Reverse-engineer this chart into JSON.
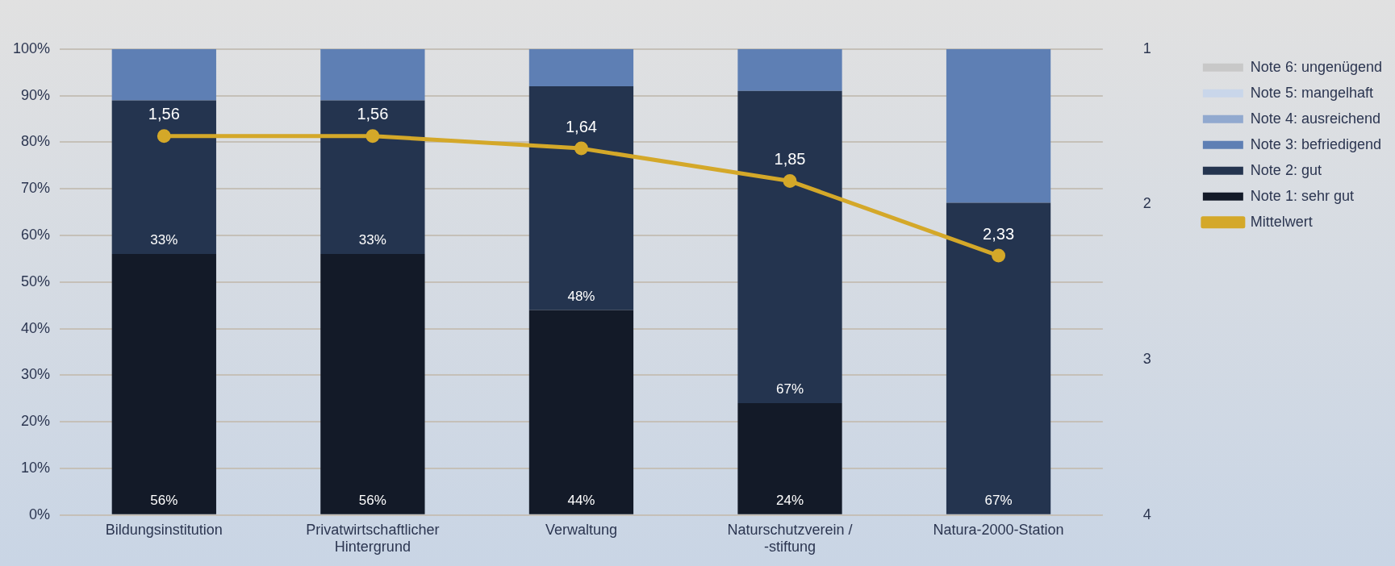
{
  "chart_data": {
    "type": "bar",
    "stacked": true,
    "categories": [
      "Bildungsinstitution",
      "Privatwirtschaftlicher Hintergrund",
      "Verwaltung",
      "Naturschutzverein / -stiftung",
      "Natura-2000-Station"
    ],
    "series": [
      {
        "name": "Note 1: sehr gut",
        "color": "#131a28",
        "values": [
          56,
          56,
          44,
          24,
          0
        ],
        "value_labels": [
          "56%",
          "56%",
          "44%",
          "24%",
          null
        ]
      },
      {
        "name": "Note 2: gut",
        "color": "#24344f",
        "values": [
          33,
          33,
          48,
          67,
          67
        ],
        "value_labels": [
          "33%",
          "33%",
          "48%",
          "67%",
          "67%"
        ]
      },
      {
        "name": "Note 3: befriedigend",
        "color": "#5e7fb4",
        "values": [
          11,
          11,
          8,
          9,
          33
        ]
      },
      {
        "name": "Note 4: ausreichend",
        "color": "#91a9cf",
        "values": [
          0,
          0,
          0,
          0,
          0
        ]
      },
      {
        "name": "Note 5: mangelhaft",
        "color": "#c9d6ea",
        "values": [
          0,
          0,
          0,
          0,
          0
        ]
      },
      {
        "name": "Note 6: ungenügend",
        "color": "#c8c8c8",
        "values": [
          0,
          0,
          0,
          0,
          0
        ]
      },
      {
        "name": "Mittelwert",
        "type": "line",
        "axis": "y2",
        "color": "#d4a829",
        "marker": "circle",
        "values": [
          1.56,
          1.56,
          1.64,
          1.85,
          2.33
        ],
        "value_labels": [
          "1,56",
          "1,56",
          "1,64",
          "1,85",
          "2,33"
        ]
      }
    ],
    "ylim": [
      0,
      100
    ],
    "yticks": [
      {
        "value": 0,
        "label": "0%"
      },
      {
        "value": 10,
        "label": "10%"
      },
      {
        "value": 20,
        "label": "20%"
      },
      {
        "value": 30,
        "label": "30%"
      },
      {
        "value": 40,
        "label": "40%"
      },
      {
        "value": 50,
        "label": "50%"
      },
      {
        "value": 60,
        "label": "60%"
      },
      {
        "value": 70,
        "label": "70%"
      },
      {
        "value": 80,
        "label": "80%"
      },
      {
        "value": 90,
        "label": "90%"
      },
      {
        "value": 100,
        "label": "100%"
      }
    ],
    "y2lim": [
      4,
      1
    ],
    "y2ticks": [
      1,
      2,
      3,
      4
    ],
    "grid": "y",
    "legend": "top right"
  }
}
